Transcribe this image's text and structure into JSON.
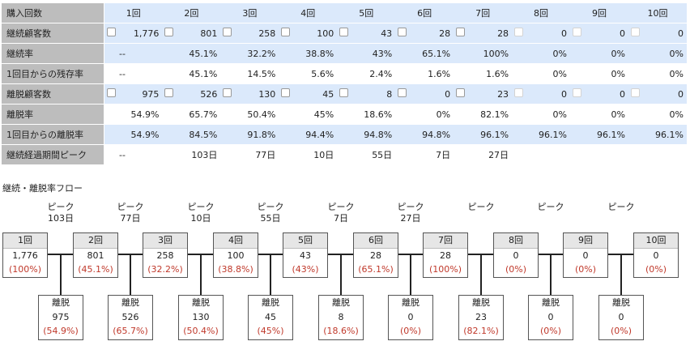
{
  "table": {
    "header": {
      "label": "購入回数",
      "cols": [
        "1回",
        "2回",
        "3回",
        "4回",
        "5回",
        "6回",
        "7回",
        "8回",
        "9回",
        "10回"
      ]
    },
    "rows": [
      {
        "label": "継続顧客数",
        "alt": true,
        "checkbox": true,
        "cells": [
          "1,776",
          "801",
          "258",
          "100",
          "43",
          "28",
          "28",
          "0",
          "0",
          "0"
        ],
        "dim": [
          false,
          false,
          false,
          false,
          false,
          false,
          false,
          true,
          true,
          true
        ]
      },
      {
        "label": "継続率",
        "alt": true,
        "cells": [
          "--",
          "45.1%",
          "32.2%",
          "38.8%",
          "43%",
          "65.1%",
          "100%",
          "0%",
          "0%",
          "0%"
        ]
      },
      {
        "label": "1回目からの残存率",
        "alt": false,
        "cells": [
          "--",
          "45.1%",
          "14.5%",
          "5.6%",
          "2.4%",
          "1.6%",
          "1.6%",
          "0%",
          "0%",
          "0%"
        ]
      },
      {
        "label": "離脱顧客数",
        "alt": true,
        "checkbox": true,
        "cells": [
          "975",
          "526",
          "130",
          "45",
          "8",
          "0",
          "23",
          "0",
          "0",
          "0"
        ],
        "dim": [
          false,
          false,
          false,
          false,
          false,
          false,
          false,
          true,
          true,
          true
        ]
      },
      {
        "label": "離脱率",
        "alt": false,
        "cells": [
          "54.9%",
          "65.7%",
          "50.4%",
          "45%",
          "18.6%",
          "0%",
          "82.1%",
          "0%",
          "0%",
          "0%"
        ]
      },
      {
        "label": "1回目からの離脱率",
        "alt": true,
        "cells": [
          "54.9%",
          "84.5%",
          "91.8%",
          "94.4%",
          "94.8%",
          "94.8%",
          "96.1%",
          "96.1%",
          "96.1%",
          "96.1%"
        ]
      },
      {
        "label": "継続経過期間ピーク",
        "alt": false,
        "cells": [
          "--",
          "103日",
          "77日",
          "10日",
          "55日",
          "7日",
          "27日",
          "",
          "",
          ""
        ]
      }
    ]
  },
  "flow": {
    "title": "継続・離脱率フロー",
    "peak_label": "ピーク",
    "peaks": [
      "103日",
      "77日",
      "10日",
      "55日",
      "7日",
      "27日",
      "",
      "",
      ""
    ],
    "stages": [
      {
        "label": "1回",
        "count": "1,776",
        "pct": "(100%)"
      },
      {
        "label": "2回",
        "count": "801",
        "pct": "(45.1%)"
      },
      {
        "label": "3回",
        "count": "258",
        "pct": "(32.2%)"
      },
      {
        "label": "4回",
        "count": "100",
        "pct": "(38.8%)"
      },
      {
        "label": "5回",
        "count": "43",
        "pct": "(43%)"
      },
      {
        "label": "6回",
        "count": "28",
        "pct": "(65.1%)"
      },
      {
        "label": "7回",
        "count": "28",
        "pct": "(100%)"
      },
      {
        "label": "8回",
        "count": "0",
        "pct": "(0%)"
      },
      {
        "label": "9回",
        "count": "0",
        "pct": "(0%)"
      },
      {
        "label": "10回",
        "count": "0",
        "pct": "(0%)"
      }
    ],
    "churn_label": "離脱",
    "churns": [
      {
        "count": "975",
        "pct": "(54.9%)"
      },
      {
        "count": "526",
        "pct": "(65.7%)"
      },
      {
        "count": "130",
        "pct": "(50.4%)"
      },
      {
        "count": "45",
        "pct": "(45%)"
      },
      {
        "count": "8",
        "pct": "(18.6%)"
      },
      {
        "count": "0",
        "pct": "(0%)"
      },
      {
        "count": "23",
        "pct": "(82.1%)"
      },
      {
        "count": "0",
        "pct": "(0%)"
      },
      {
        "count": "0",
        "pct": "(0%)"
      }
    ]
  }
}
